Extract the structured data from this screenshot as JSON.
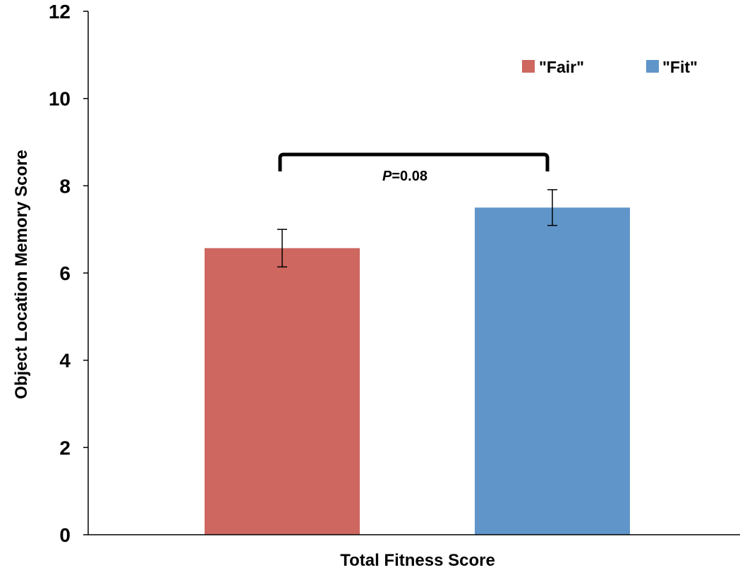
{
  "chart_data": {
    "type": "bar",
    "title": "",
    "xlabel": "Total Fitness Score",
    "ylabel": "Object Location Memory Score",
    "ylim": [
      0,
      12
    ],
    "yticks": [
      "0",
      "2",
      "4",
      "6",
      "8",
      "10",
      "12"
    ],
    "grid": false,
    "legend_position": "top-right",
    "series": [
      {
        "name": "\"Fair\"",
        "value": 6.57,
        "error": 0.43,
        "color": "#CD6760"
      },
      {
        "name": "\"Fit\"",
        "value": 7.5,
        "error": 0.41,
        "color": "#6095C9"
      }
    ],
    "annotation": {
      "p_label": "P",
      "p_value": "=0.08"
    }
  }
}
